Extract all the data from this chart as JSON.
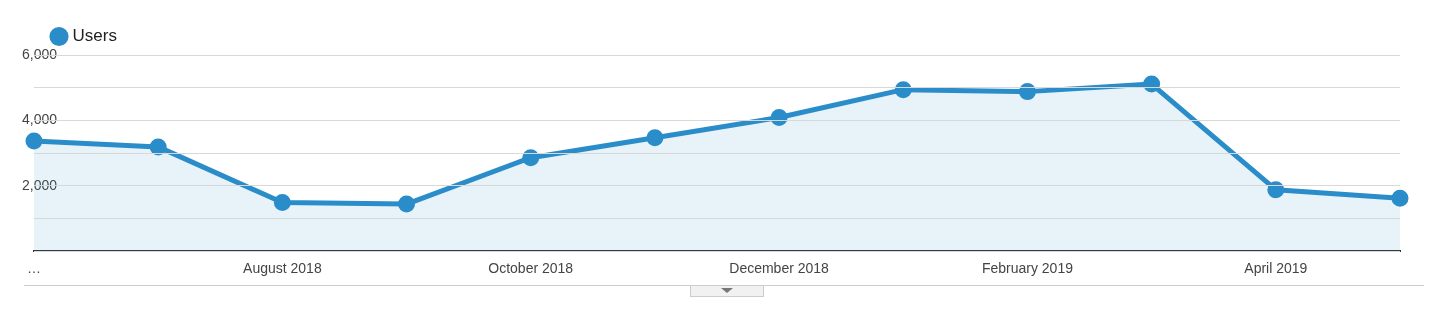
{
  "chart_data": {
    "type": "area",
    "categories": [
      "…",
      null,
      "August 2018",
      null,
      "October 2018",
      null,
      "December 2018",
      null,
      "February 2019",
      null,
      "April 2019",
      null
    ],
    "series": [
      {
        "name": "Users",
        "color": "#2a8dc9",
        "values": [
          3370,
          3190,
          1490,
          1440,
          2860,
          3470,
          4090,
          4940,
          4880,
          5110,
          1880,
          1620
        ]
      }
    ],
    "ylim": [
      0,
      6000
    ],
    "yticks": [
      {
        "value": 0,
        "label": null
      },
      {
        "value": 1000,
        "label": null
      },
      {
        "value": 2000,
        "label": "2,000"
      },
      {
        "value": 3000,
        "label": null
      },
      {
        "value": 4000,
        "label": "4,000"
      },
      {
        "value": 5000,
        "label": null
      },
      {
        "value": 6000,
        "label": "6,000"
      }
    ],
    "grid": "y",
    "legend": "top left",
    "marker": "circle"
  }
}
